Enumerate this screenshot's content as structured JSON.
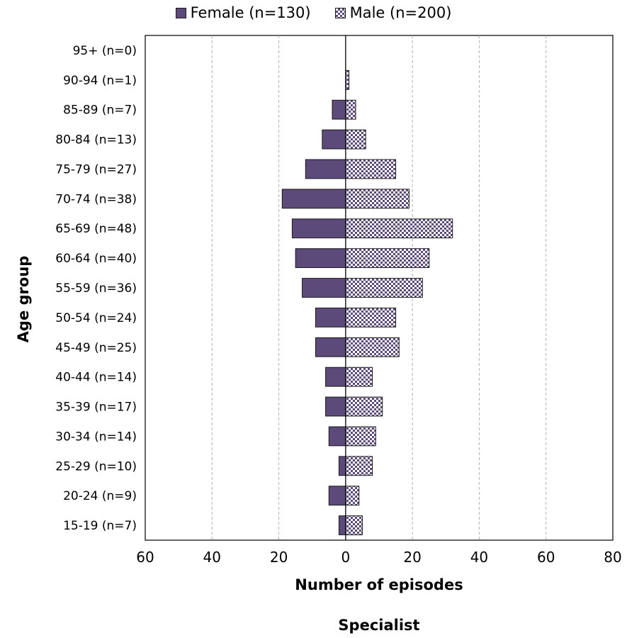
{
  "legend": {
    "female_label": "Female (n=130)",
    "male_label": "Male (n=200)"
  },
  "colors": {
    "female": "#5c4a7a",
    "male_pattern": "#5c4a7a",
    "male_background": "#ffffff",
    "axis": "#000000",
    "grid": "#b0b0b0"
  },
  "chart_data": {
    "type": "bar",
    "orientation": "horizontal",
    "title": "",
    "subtitle": "Specialist",
    "xlabel": "Number of episodes",
    "ylabel": "Age group",
    "xlim": [
      -60,
      80
    ],
    "x_ticks": [
      -60,
      -40,
      -20,
      0,
      20,
      40,
      60,
      80
    ],
    "x_tick_labels": [
      "60",
      "40",
      "20",
      "0",
      "20",
      "40",
      "60",
      "80"
    ],
    "grid": "vertical dashed",
    "legend_position": "top",
    "categories": [
      "95+ (n=0)",
      "90-94 (n=1)",
      "85-89 (n=7)",
      "80-84 (n=13)",
      "75-79 (n=27)",
      "70-74 (n=38)",
      "65-69 (n=48)",
      "60-64 (n=40)",
      "55-59 (n=36)",
      "50-54 (n=24)",
      "45-49 (n=25)",
      "40-44 (n=14)",
      "35-39 (n=17)",
      "30-34 (n=14)",
      "25-29 (n=10)",
      "20-24 (n=9)",
      "15-19 (n=7)"
    ],
    "series": [
      {
        "name": "Female (n=130)",
        "values": [
          0,
          0,
          4,
          7,
          12,
          19,
          16,
          15,
          13,
          9,
          9,
          6,
          6,
          5,
          2,
          5,
          2
        ]
      },
      {
        "name": "Male (n=200)",
        "values": [
          0,
          1,
          3,
          6,
          15,
          19,
          32,
          25,
          23,
          15,
          16,
          8,
          11,
          9,
          8,
          4,
          5
        ]
      }
    ]
  }
}
